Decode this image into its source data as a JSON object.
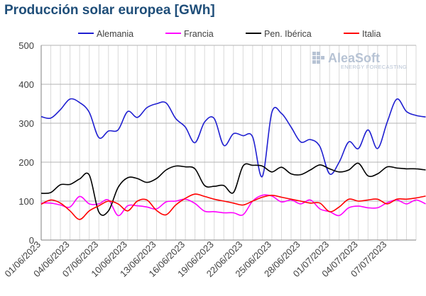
{
  "chart_data": {
    "type": "line",
    "title": "Producción solar europea [GWh]",
    "xlabel": "",
    "ylabel": "",
    "ylim": [
      0,
      500
    ],
    "yticks": [
      0,
      100,
      200,
      300,
      400,
      500
    ],
    "grid": true,
    "legend_position": "top",
    "x_tick_labels": [
      "01/06/2023",
      "04/06/2023",
      "07/06/2023",
      "10/06/2023",
      "13/06/2023",
      "16/06/2023",
      "19/06/2023",
      "22/06/2023",
      "25/06/2023",
      "28/06/2023",
      "01/07/2023",
      "04/07/2023",
      "07/07/2023"
    ],
    "x_tick_days": [
      0,
      3,
      6,
      9,
      12,
      15,
      18,
      21,
      24,
      27,
      30,
      33,
      36
    ],
    "x_range": [
      0,
      39
    ],
    "series": [
      {
        "name": "Alemania",
        "color": "#1f1fd1",
        "values": [
          317,
          313,
          335,
          362,
          353,
          328,
          263,
          280,
          283,
          330,
          315,
          340,
          350,
          352,
          312,
          290,
          250,
          303,
          312,
          243,
          273,
          268,
          265,
          163,
          328,
          325,
          290,
          252,
          258,
          240,
          170,
          200,
          252,
          235,
          283,
          235,
          303,
          362,
          330,
          320,
          316
        ]
      },
      {
        "name": "Francia",
        "color": "#ff00ff",
        "values": [
          95,
          95,
          90,
          85,
          112,
          93,
          93,
          103,
          63,
          88,
          88,
          85,
          80,
          98,
          100,
          105,
          94,
          74,
          73,
          70,
          70,
          65,
          100,
          115,
          113,
          98,
          103,
          93,
          103,
          80,
          73,
          63,
          83,
          87,
          83,
          83,
          96,
          103,
          93,
          103,
          93
        ]
      },
      {
        "name": "Pen. Ibérica",
        "color": "#000000",
        "values": [
          120,
          122,
          142,
          143,
          157,
          167,
          72,
          75,
          135,
          160,
          158,
          148,
          158,
          180,
          190,
          188,
          183,
          140,
          138,
          140,
          122,
          190,
          192,
          190,
          175,
          187,
          170,
          168,
          180,
          193,
          183,
          175,
          180,
          197,
          165,
          170,
          188,
          185,
          183,
          183,
          180
        ]
      },
      {
        "name": "Italia",
        "color": "#ff0000",
        "values": [
          92,
          103,
          95,
          75,
          53,
          75,
          88,
          100,
          93,
          75,
          100,
          103,
          76,
          65,
          90,
          107,
          118,
          112,
          105,
          100,
          95,
          90,
          100,
          110,
          115,
          110,
          105,
          100,
          95,
          95,
          73,
          85,
          105,
          100,
          103,
          105,
          93,
          105,
          105,
          108,
          113
        ]
      }
    ]
  },
  "watermark": {
    "brand": "AleaSoft",
    "tagline": "ENERGY FORECASTING"
  }
}
